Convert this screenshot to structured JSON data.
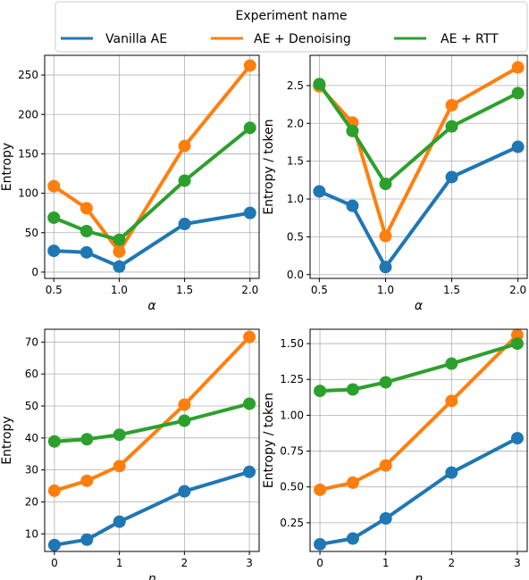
{
  "legend": {
    "title": "Experiment name",
    "entries": [
      {
        "name": "Vanilla AE",
        "color": "#1f77b4"
      },
      {
        "name": "AE + Denoising",
        "color": "#ff7f0e"
      },
      {
        "name": "AE + RTT",
        "color": "#2ca02c"
      }
    ]
  },
  "chart_data": [
    {
      "type": "line",
      "xlabel": "α",
      "ylabel": "Entropy",
      "xlim": [
        0.43,
        2.07
      ],
      "ylim": [
        -8,
        275
      ],
      "xticks": [
        0.5,
        1.0,
        1.5,
        2.0
      ],
      "xtick_labels": [
        "0.5",
        "1.0",
        "1.5",
        "2.0"
      ],
      "yticks": [
        0,
        50,
        100,
        150,
        200,
        250
      ],
      "ytick_labels": [
        "0",
        "50",
        "100",
        "150",
        "200",
        "250"
      ],
      "grid": true,
      "x": [
        0.5,
        0.75,
        1.0,
        1.5,
        2.0
      ],
      "series": [
        {
          "name": "Vanilla AE",
          "values": [
            27,
            25,
            7,
            61,
            75
          ]
        },
        {
          "name": "AE + Denoising",
          "values": [
            109,
            81,
            26,
            160,
            262
          ]
        },
        {
          "name": "AE + RTT",
          "values": [
            69,
            52,
            41,
            116,
            183
          ]
        }
      ]
    },
    {
      "type": "line",
      "xlabel": "α",
      "ylabel": "Entropy / token",
      "xlim": [
        0.43,
        2.07
      ],
      "ylim": [
        -0.05,
        2.9
      ],
      "xticks": [
        0.5,
        1.0,
        1.5,
        2.0
      ],
      "xtick_labels": [
        "0.5",
        "1.0",
        "1.5",
        "2.0"
      ],
      "yticks": [
        0.0,
        0.5,
        1.0,
        1.5,
        2.0,
        2.5
      ],
      "ytick_labels": [
        "0.0",
        "0.5",
        "1.0",
        "1.5",
        "2.0",
        "2.5"
      ],
      "grid": true,
      "x": [
        0.5,
        0.75,
        1.0,
        1.5,
        2.0
      ],
      "series": [
        {
          "name": "Vanilla AE",
          "values": [
            1.1,
            0.91,
            0.1,
            1.29,
            1.69
          ]
        },
        {
          "name": "AE + Denoising",
          "values": [
            2.49,
            2.01,
            0.51,
            2.24,
            2.74
          ]
        },
        {
          "name": "AE + RTT",
          "values": [
            2.52,
            1.9,
            1.2,
            1.96,
            2.4
          ]
        }
      ]
    },
    {
      "type": "line",
      "xlabel": "η",
      "ylabel": "Entropy",
      "xlim": [
        -0.15,
        3.15
      ],
      "ylim": [
        4.5,
        74
      ],
      "xticks": [
        0,
        1,
        2,
        3
      ],
      "xtick_labels": [
        "0",
        "1",
        "2",
        "3"
      ],
      "yticks": [
        10,
        20,
        30,
        40,
        50,
        60,
        70
      ],
      "ytick_labels": [
        "10",
        "20",
        "30",
        "40",
        "50",
        "60",
        "70"
      ],
      "grid": true,
      "x": [
        0,
        0.5,
        1,
        2,
        3
      ],
      "series": [
        {
          "name": "Vanilla AE",
          "values": [
            6.5,
            8.2,
            13.8,
            23.3,
            29.4
          ]
        },
        {
          "name": "AE + Denoising",
          "values": [
            23.5,
            26.6,
            31.2,
            50.4,
            71.6
          ]
        },
        {
          "name": "AE + RTT",
          "values": [
            38.9,
            39.6,
            41.0,
            45.4,
            50.7
          ]
        }
      ]
    },
    {
      "type": "line",
      "xlabel": "η",
      "ylabel": "Entropy / token",
      "xlim": [
        -0.15,
        3.15
      ],
      "ylim": [
        0.05,
        1.6
      ],
      "xticks": [
        0,
        1,
        2,
        3
      ],
      "xtick_labels": [
        "0",
        "1",
        "2",
        "3"
      ],
      "yticks": [
        0.25,
        0.5,
        0.75,
        1.0,
        1.25,
        1.5
      ],
      "ytick_labels": [
        "0.25",
        "0.50",
        "0.75",
        "1.00",
        "1.25",
        "1.50"
      ],
      "grid": true,
      "x": [
        0,
        0.5,
        1,
        2,
        3
      ],
      "series": [
        {
          "name": "Vanilla AE",
          "values": [
            0.1,
            0.14,
            0.28,
            0.6,
            0.84
          ]
        },
        {
          "name": "AE + Denoising",
          "values": [
            0.48,
            0.53,
            0.65,
            1.1,
            1.56
          ]
        },
        {
          "name": "AE + RTT",
          "values": [
            1.17,
            1.18,
            1.23,
            1.36,
            1.5
          ]
        }
      ]
    }
  ]
}
